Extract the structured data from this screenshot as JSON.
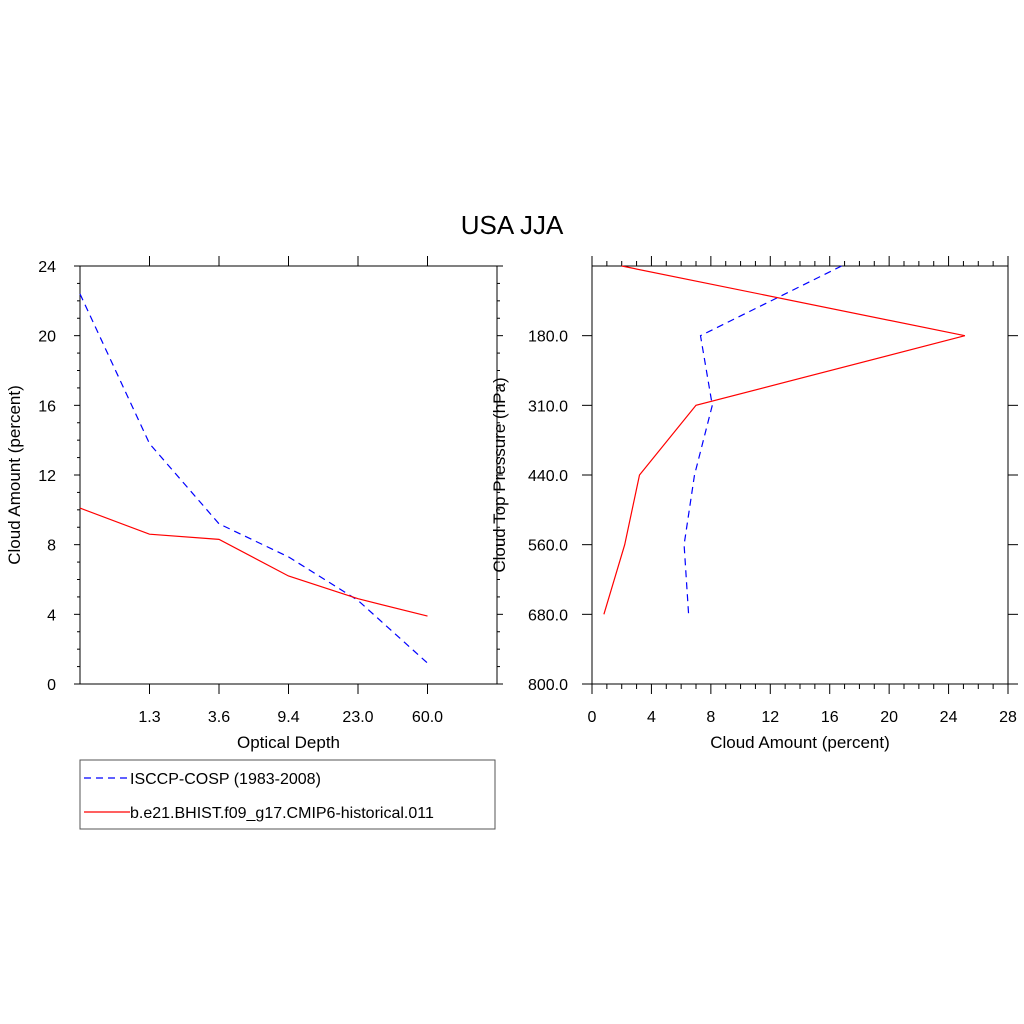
{
  "title": "USA JJA",
  "colors": {
    "obs": "#0000ff",
    "model": "#ff0000",
    "axis": "#000000"
  },
  "legend": {
    "placement": "below-left",
    "entries": [
      {
        "label": "ISCCP-COSP (1983-2008)",
        "color": "#0000ff",
        "style": "dashed"
      },
      {
        "label": "b.e21.BHIST.f09_g17.CMIP6-historical.011",
        "color": "#ff0000",
        "style": "solid"
      }
    ]
  },
  "chart_data": [
    {
      "type": "line",
      "xlabel": "Optical Depth",
      "ylabel": "Cloud Amount (percent)",
      "ylim": [
        0,
        24
      ],
      "yticks": [
        0,
        4,
        8,
        12,
        16,
        20,
        24
      ],
      "xtick_labels": [
        "1.3",
        "3.6",
        "9.4",
        "23.0",
        "60.0"
      ],
      "x_categories": 7,
      "series": [
        {
          "name": "ISCCP-COSP (1983-2008)",
          "color": "#0000ff",
          "style": "dashed",
          "values": [
            22.4,
            13.8,
            9.2,
            7.3,
            4.8,
            1.2
          ]
        },
        {
          "name": "b.e21.BHIST.f09_g17.CMIP6-historical.011",
          "color": "#ff0000",
          "style": "solid",
          "values": [
            10.1,
            8.6,
            8.3,
            6.2,
            4.9,
            3.9
          ]
        }
      ]
    },
    {
      "type": "line",
      "xlabel": "Cloud Amount (percent)",
      "ylabel": "Cloud Top Pressure (hPa)",
      "xlim": [
        0,
        28
      ],
      "xticks": [
        0,
        4,
        8,
        12,
        16,
        20,
        24,
        28
      ],
      "ytick_labels": [
        "180.0",
        "310.0",
        "440.0",
        "560.0",
        "680.0",
        "800.0"
      ],
      "y_categories": 7,
      "series": [
        {
          "name": "ISCCP-COSP (1983-2008)",
          "color": "#0000ff",
          "style": "dashed",
          "values": [
            16.8,
            7.3,
            8.1,
            6.9,
            6.2,
            6.5
          ]
        },
        {
          "name": "b.e21.BHIST.f09_g17.CMIP6-historical.011",
          "color": "#ff0000",
          "style": "solid",
          "values": [
            2.0,
            25.1,
            7.0,
            3.2,
            2.2,
            0.8
          ]
        }
      ]
    }
  ]
}
